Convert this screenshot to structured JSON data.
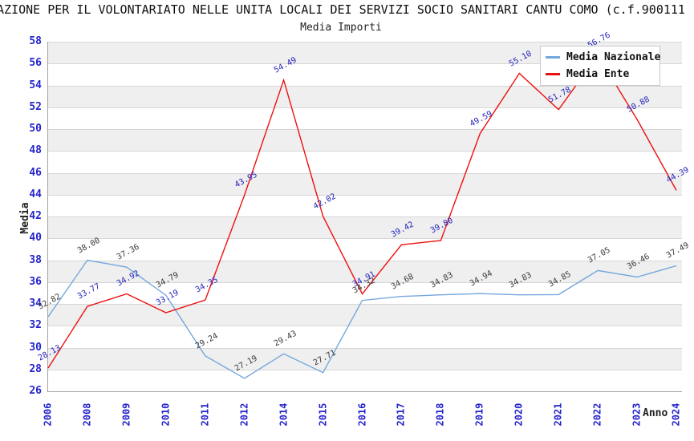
{
  "header": {
    "title": "AZIONE PER IL VOLONTARIATO NELLE UNITA LOCALI DEI SERVIZI SOCIO SANITARI CANTU COMO (c.f.900111",
    "subtitle": "Media Importi"
  },
  "chart_data": {
    "type": "line",
    "title": "AZIONE PER IL VOLONTARIATO NELLE UNITA LOCALI DEI SERVIZI SOCIO SANITARI CANTU COMO (c.f.900111",
    "subtitle": "Media Importi",
    "xlabel": "Anno",
    "ylabel": "Media",
    "ylim": [
      26,
      58
    ],
    "ytick_step": 2,
    "grid": true,
    "band_color": "#efefef",
    "grid_color": "#d6d6d6",
    "axis_text_color": "#2424cc",
    "legend_position": "top-right",
    "categories": [
      "2006",
      "2008",
      "2009",
      "2010",
      "2011",
      "2012",
      "2014",
      "2015",
      "2016",
      "2017",
      "2018",
      "2019",
      "2020",
      "2021",
      "2022",
      "2023",
      "2024"
    ],
    "series": [
      {
        "name": "Media Nazionale",
        "color": "#74a7dd",
        "label_color": "#3a3a3a",
        "values": [
          32.82,
          38.0,
          37.36,
          34.79,
          29.24,
          27.19,
          29.43,
          27.71,
          34.32,
          34.68,
          34.83,
          34.94,
          34.83,
          34.85,
          37.05,
          36.46,
          37.49
        ]
      },
      {
        "name": "Media Ente",
        "color": "#ee1111",
        "label_color": "#2323bb",
        "values": [
          28.13,
          33.77,
          34.92,
          33.19,
          34.35,
          43.95,
          54.49,
          42.02,
          34.91,
          39.42,
          39.8,
          49.59,
          55.1,
          51.78,
          56.76,
          50.88,
          44.39
        ]
      }
    ]
  }
}
